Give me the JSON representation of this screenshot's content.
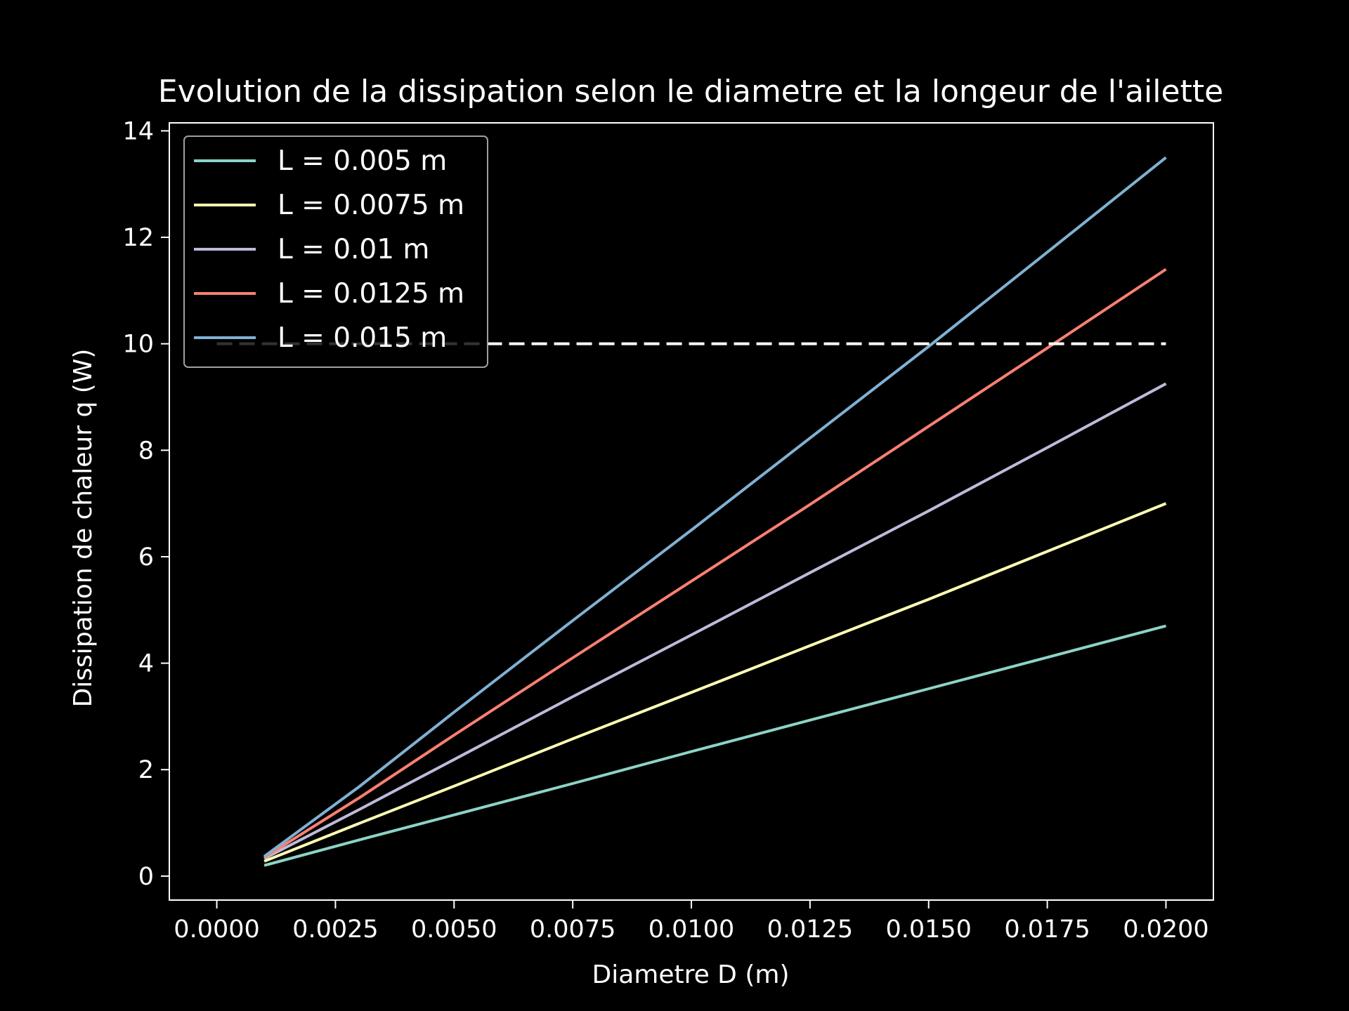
{
  "chart_data": {
    "type": "line",
    "title": "Evolution de la dissipation selon le diametre et la longeur de l'ailette",
    "xlabel": "Diametre D (m)",
    "ylabel": "Dissipation de chaleur q (W)",
    "xlim": [
      -0.001,
      0.021
    ],
    "ylim": [
      -0.45,
      14.15
    ],
    "xticks": [
      0.0,
      0.0025,
      0.005,
      0.0075,
      0.01,
      0.0125,
      0.015,
      0.0175,
      0.02
    ],
    "xtick_labels": [
      "0.0000",
      "0.0025",
      "0.0050",
      "0.0075",
      "0.0100",
      "0.0125",
      "0.0150",
      "0.0175",
      "0.0200"
    ],
    "yticks": [
      0,
      2,
      4,
      6,
      8,
      10,
      12,
      14
    ],
    "ytick_labels": [
      "0",
      "2",
      "4",
      "6",
      "8",
      "10",
      "12",
      "14"
    ],
    "grid": false,
    "legend_position": "top-left",
    "background": "#000000",
    "foreground": "#ffffff",
    "reference_line": {
      "y": 10,
      "x_range": [
        0.0,
        0.02
      ],
      "style": "dashed",
      "color": "#ffffff"
    },
    "series": [
      {
        "name": "L = 0.005 m",
        "color": "#8dd3c7",
        "x": [
          0.001,
          0.003,
          0.005,
          0.0075,
          0.01,
          0.0125,
          0.015,
          0.0175,
          0.02
        ],
        "y": [
          0.2,
          0.68,
          1.15,
          1.74,
          2.34,
          2.93,
          3.52,
          4.11,
          4.7
        ]
      },
      {
        "name": "L = 0.0075 m",
        "color": "#ffffb3",
        "x": [
          0.001,
          0.003,
          0.005,
          0.0075,
          0.01,
          0.0125,
          0.015,
          0.0175,
          0.02
        ],
        "y": [
          0.28,
          0.99,
          1.69,
          2.58,
          3.45,
          4.33,
          5.2,
          6.1,
          7.0
        ]
      },
      {
        "name": "L = 0.01 m",
        "color": "#bebada",
        "x": [
          0.001,
          0.003,
          0.005,
          0.0075,
          0.01,
          0.0125,
          0.015,
          0.0175,
          0.02
        ],
        "y": [
          0.33,
          1.25,
          2.19,
          3.37,
          4.53,
          5.7,
          6.86,
          8.05,
          9.25
        ]
      },
      {
        "name": "L = 0.0125 m",
        "color": "#fb8072",
        "x": [
          0.001,
          0.003,
          0.005,
          0.0075,
          0.01,
          0.0125,
          0.015,
          0.0175,
          0.02
        ],
        "y": [
          0.35,
          1.47,
          2.65,
          4.1,
          5.54,
          6.98,
          8.45,
          9.92,
          11.4
        ]
      },
      {
        "name": "L = 0.015 m",
        "color": "#80b1d3",
        "x": [
          0.001,
          0.003,
          0.005,
          0.0075,
          0.01,
          0.0125,
          0.015,
          0.0175,
          0.02
        ],
        "y": [
          0.37,
          1.68,
          3.08,
          4.8,
          6.5,
          8.23,
          9.95,
          11.72,
          13.5
        ]
      }
    ]
  }
}
